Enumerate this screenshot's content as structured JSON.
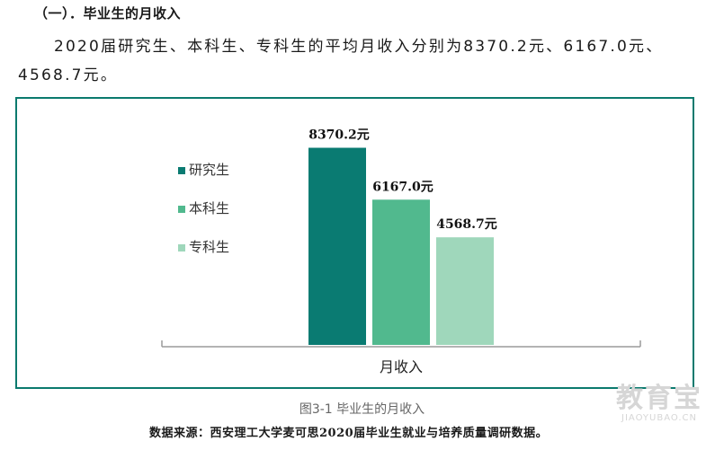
{
  "heading": "（一）．毕业生的月收入",
  "paragraph": "2020届研究生、本科生、专科生的平均月收入分别为8370.2元、6167.0元、4568.7元。",
  "caption": "图3-1  毕业生的月收入",
  "source": "数据来源：西安理工大学麦可思2020届毕业生就业与培养质量调研数据。",
  "watermark": {
    "big": "教育宝",
    "small": "JIAOYUBAO.CN"
  },
  "chart_data": {
    "type": "bar",
    "xlabel": "月收入",
    "categories": [
      "研究生",
      "本科生",
      "专科生"
    ],
    "values": [
      8370.2,
      6167.0,
      4568.7
    ],
    "data_labels": [
      "8370.2元",
      "6167.0元",
      "4568.7元"
    ],
    "colors": [
      "#0a7b72",
      "#51b98e",
      "#9fd7bb"
    ],
    "legend_position": "left",
    "ylim": [
      0,
      9000
    ],
    "grid": false
  }
}
